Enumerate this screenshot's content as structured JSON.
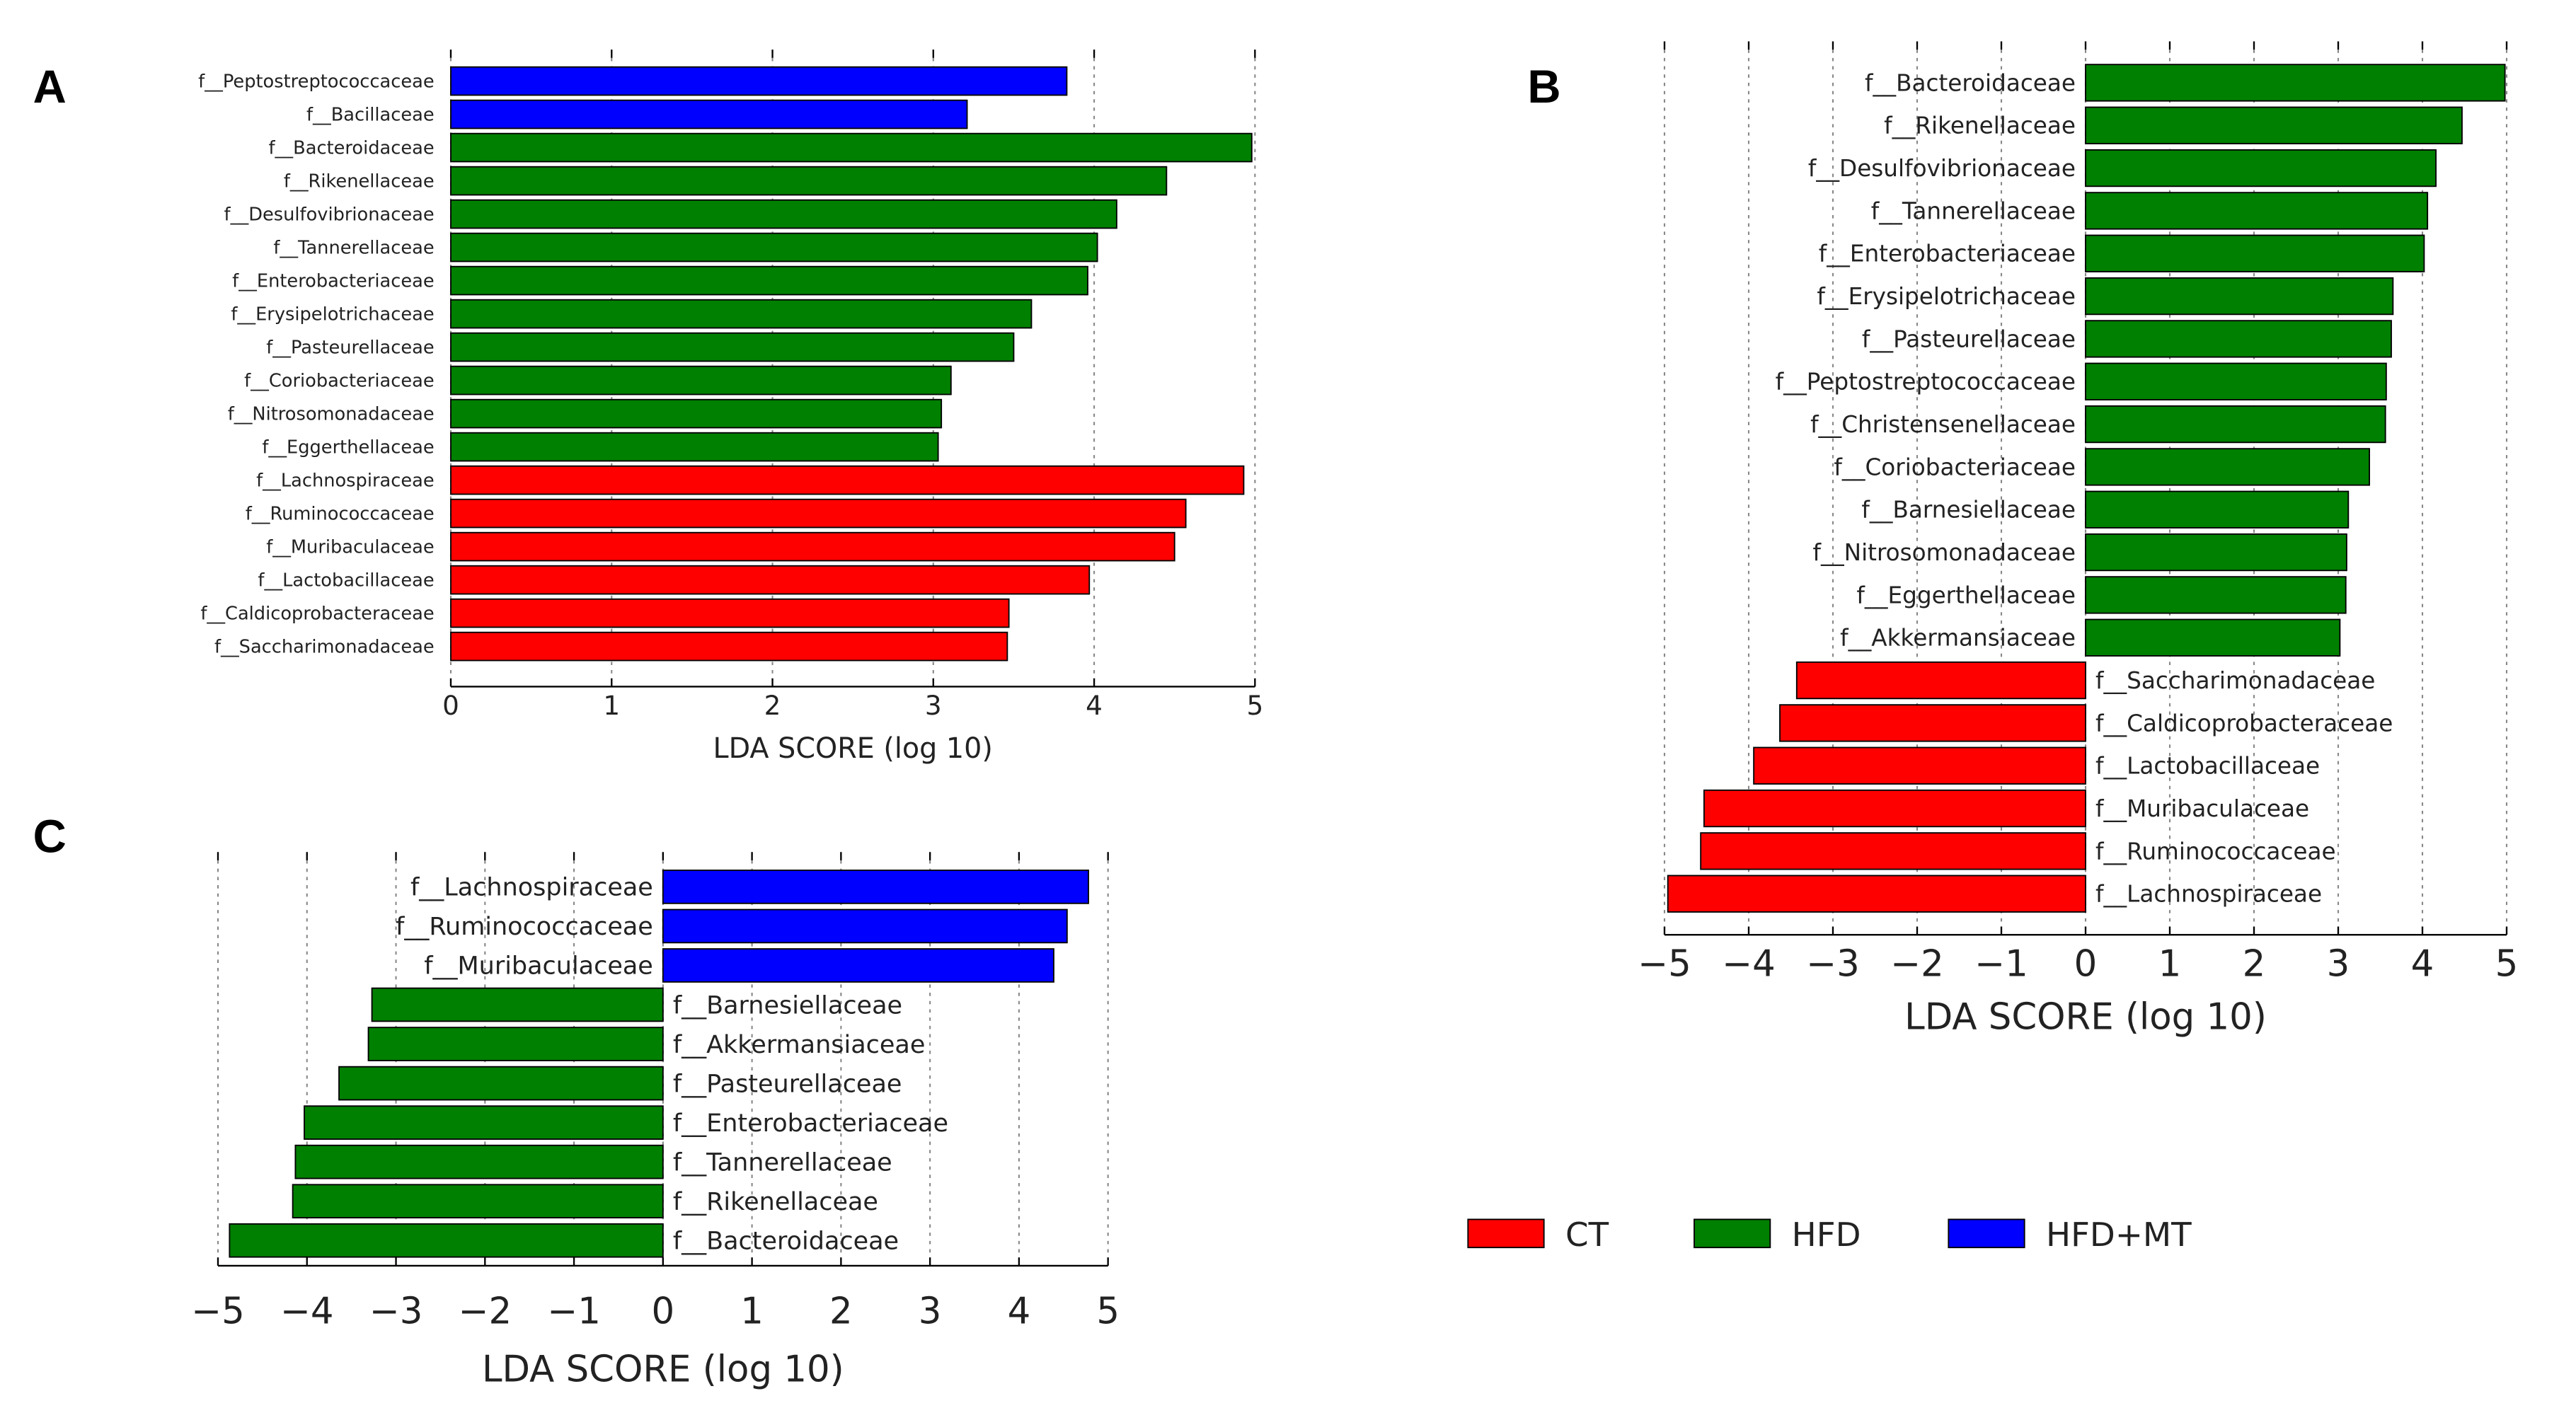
{
  "colors": {
    "CT": "#ff0000",
    "HFD": "#008000",
    "HFD+MT": "#0000ff"
  },
  "legend": [
    {
      "label": "CT",
      "color": "#ff0000"
    },
    {
      "label": "HFD",
      "color": "#008000"
    },
    {
      "label": "HFD+MT",
      "color": "#0000ff"
    }
  ],
  "chart_data": [
    {
      "panel": "A",
      "type": "bar",
      "orientation": "horizontal",
      "xlabel": "LDA SCORE (log 10)",
      "xlim": [
        0,
        5
      ],
      "xticks": [
        "0",
        "1",
        "2",
        "3",
        "4",
        "5"
      ],
      "grid": true,
      "bars": [
        {
          "label": "f__Peptostreptococcaceae",
          "value": 3.83,
          "group": "HFD+MT"
        },
        {
          "label": "f__Bacillaceae",
          "value": 3.21,
          "group": "HFD+MT"
        },
        {
          "label": "f__Bacteroidaceae",
          "value": 4.98,
          "group": "HFD"
        },
        {
          "label": "f__Rikenellaceae",
          "value": 4.45,
          "group": "HFD"
        },
        {
          "label": "f__Desulfovibrionaceae",
          "value": 4.14,
          "group": "HFD"
        },
        {
          "label": "f__Tannerellaceae",
          "value": 4.02,
          "group": "HFD"
        },
        {
          "label": "f__Enterobacteriaceae",
          "value": 3.96,
          "group": "HFD"
        },
        {
          "label": "f__Erysipelotrichaceae",
          "value": 3.61,
          "group": "HFD"
        },
        {
          "label": "f__Pasteurellaceae",
          "value": 3.5,
          "group": "HFD"
        },
        {
          "label": "f__Coriobacteriaceae",
          "value": 3.11,
          "group": "HFD"
        },
        {
          "label": "f__Nitrosomonadaceae",
          "value": 3.05,
          "group": "HFD"
        },
        {
          "label": "f__Eggerthellaceae",
          "value": 3.03,
          "group": "HFD"
        },
        {
          "label": "f__Lachnospiraceae",
          "value": 4.93,
          "group": "CT"
        },
        {
          "label": "f__Ruminococcaceae",
          "value": 4.57,
          "group": "CT"
        },
        {
          "label": "f__Muribaculaceae",
          "value": 4.5,
          "group": "CT"
        },
        {
          "label": "f__Lactobacillaceae",
          "value": 3.97,
          "group": "CT"
        },
        {
          "label": "f__Caldicoprobacteraceae",
          "value": 3.47,
          "group": "CT"
        },
        {
          "label": "f__Saccharimonadaceae",
          "value": 3.46,
          "group": "CT"
        }
      ]
    },
    {
      "panel": "B",
      "type": "bar",
      "orientation": "horizontal",
      "xlabel": "LDA SCORE (log 10)",
      "xlim": [
        -5,
        5
      ],
      "xticks": [
        "−5",
        "−4",
        "−3",
        "−2",
        "−1",
        "0",
        "1",
        "2",
        "3",
        "4",
        "5"
      ],
      "grid": true,
      "bars": [
        {
          "label": "f__Bacteroidaceae",
          "value": 4.98,
          "group": "HFD"
        },
        {
          "label": "f__Rikenellaceae",
          "value": 4.47,
          "group": "HFD"
        },
        {
          "label": "f__Desulfovibrionaceae",
          "value": 4.16,
          "group": "HFD"
        },
        {
          "label": "f__Tannerellaceae",
          "value": 4.06,
          "group": "HFD"
        },
        {
          "label": "f__Enterobacteriaceae",
          "value": 4.02,
          "group": "HFD"
        },
        {
          "label": "f__Erysipelotrichaceae",
          "value": 3.65,
          "group": "HFD"
        },
        {
          "label": "f__Pasteurellaceae",
          "value": 3.63,
          "group": "HFD"
        },
        {
          "label": "f__Peptostreptococcaceae",
          "value": 3.57,
          "group": "HFD"
        },
        {
          "label": "f__Christensenellaceae",
          "value": 3.56,
          "group": "HFD"
        },
        {
          "label": "f__Coriobacteriaceae",
          "value": 3.37,
          "group": "HFD"
        },
        {
          "label": "f__Barnesiellaceae",
          "value": 3.12,
          "group": "HFD"
        },
        {
          "label": "f__Nitrosomonadaceae",
          "value": 3.1,
          "group": "HFD"
        },
        {
          "label": "f__Eggerthellaceae",
          "value": 3.09,
          "group": "HFD"
        },
        {
          "label": "f__Akkermansiaceae",
          "value": 3.02,
          "group": "HFD"
        },
        {
          "label": "f__Saccharimonadaceae",
          "value": -3.43,
          "group": "CT"
        },
        {
          "label": "f__Caldicoprobacteraceae",
          "value": -3.63,
          "group": "CT"
        },
        {
          "label": "f__Lactobacillaceae",
          "value": -3.94,
          "group": "CT"
        },
        {
          "label": "f__Muribaculaceae",
          "value": -4.53,
          "group": "CT"
        },
        {
          "label": "f__Ruminococcaceae",
          "value": -4.57,
          "group": "CT"
        },
        {
          "label": "f__Lachnospiraceae",
          "value": -4.96,
          "group": "CT"
        }
      ]
    },
    {
      "panel": "C",
      "type": "bar",
      "orientation": "horizontal",
      "xlabel": "LDA SCORE (log 10)",
      "xlim": [
        -5,
        5
      ],
      "xticks": [
        "−5",
        "−4",
        "−3",
        "−2",
        "−1",
        "0",
        "1",
        "2",
        "3",
        "4",
        "5"
      ],
      "grid": true,
      "bars": [
        {
          "label": "f__Lachnospiraceae",
          "value": 4.78,
          "group": "HFD+MT"
        },
        {
          "label": "f__Ruminococcaceae",
          "value": 4.54,
          "group": "HFD+MT"
        },
        {
          "label": "f__Muribaculaceae",
          "value": 4.39,
          "group": "HFD+MT"
        },
        {
          "label": "f__Barnesiellaceae",
          "value": -3.27,
          "group": "HFD"
        },
        {
          "label": "f__Akkermansiaceae",
          "value": -3.31,
          "group": "HFD"
        },
        {
          "label": "f__Pasteurellaceae",
          "value": -3.64,
          "group": "HFD"
        },
        {
          "label": "f__Enterobacteriaceae",
          "value": -4.03,
          "group": "HFD"
        },
        {
          "label": "f__Tannerellaceae",
          "value": -4.13,
          "group": "HFD"
        },
        {
          "label": "f__Rikenellaceae",
          "value": -4.16,
          "group": "HFD"
        },
        {
          "label": "f__Bacteroidaceae",
          "value": -4.87,
          "group": "HFD"
        }
      ]
    }
  ]
}
